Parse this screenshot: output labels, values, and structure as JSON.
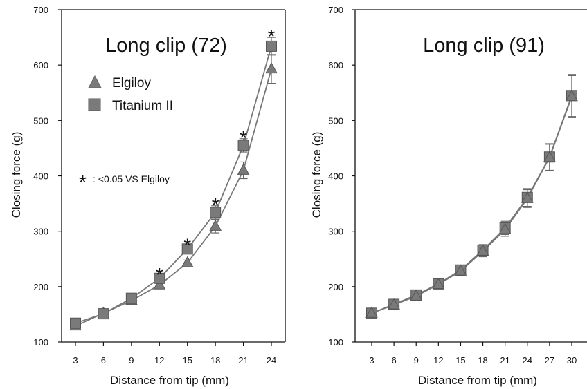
{
  "chart_data": [
    {
      "type": "line",
      "title": "Long clip (72)",
      "xlabel": "Distance from tip (mm)",
      "ylabel": "Closing force (g)",
      "ylim": [
        100,
        700
      ],
      "yticks": [
        100,
        200,
        300,
        400,
        500,
        600,
        700
      ],
      "x": [
        3,
        6,
        9,
        12,
        15,
        18,
        21,
        24
      ],
      "x_tick_labels": [
        "3",
        "6",
        "9",
        "12",
        "15",
        "18",
        "21",
        "24"
      ],
      "grid": false,
      "legend_position": "top-left",
      "series": [
        {
          "name": "Elgiloy",
          "marker": "triangle",
          "values": [
            129,
            152,
            175,
            203,
            243,
            309,
            410,
            593
          ],
          "error": [
            4,
            4,
            5,
            5,
            5,
            12,
            15,
            26
          ]
        },
        {
          "name": "Titanium II",
          "marker": "square",
          "values": [
            134,
            151,
            179,
            215,
            268,
            334,
            455,
            634
          ],
          "error": [
            4,
            4,
            4,
            5,
            5,
            12,
            12,
            16
          ]
        }
      ],
      "significance": {
        "symbol": "*",
        "note": ": <0.05 VS Elgiloy",
        "x": [
          12,
          15,
          18,
          21,
          24
        ]
      },
      "colors": {
        "line": "#777777",
        "marker": "#7a7a7a",
        "marker_edge": "#555555"
      }
    },
    {
      "type": "line",
      "title": "Long clip (91)",
      "xlabel": "Distance from tip (mm)",
      "ylabel": "Closing force (g)",
      "ylim": [
        100,
        700
      ],
      "yticks": [
        100,
        200,
        300,
        400,
        500,
        600,
        700
      ],
      "x": [
        3,
        6,
        9,
        12,
        15,
        18,
        21,
        24,
        27,
        30
      ],
      "x_tick_labels": [
        "3",
        "6",
        "9",
        "12",
        "15",
        "18",
        "21",
        "24",
        "27",
        "30"
      ],
      "grid": false,
      "series": [
        {
          "marker": "square",
          "values": [
            152,
            168,
            185,
            205,
            230,
            266,
            306,
            361,
            434,
            545
          ],
          "error": [
            8,
            6,
            8,
            8,
            8,
            10,
            12,
            16,
            24,
            38
          ]
        },
        {
          "marker": "triangle",
          "values": [
            152,
            167,
            183,
            204,
            228,
            264,
            303,
            359,
            433,
            543
          ],
          "error": [
            8,
            6,
            8,
            8,
            8,
            10,
            12,
            16,
            24,
            38
          ]
        }
      ],
      "colors": {
        "line": "#777777",
        "marker": "#7a7a7a",
        "marker_edge": "#555555"
      }
    }
  ]
}
